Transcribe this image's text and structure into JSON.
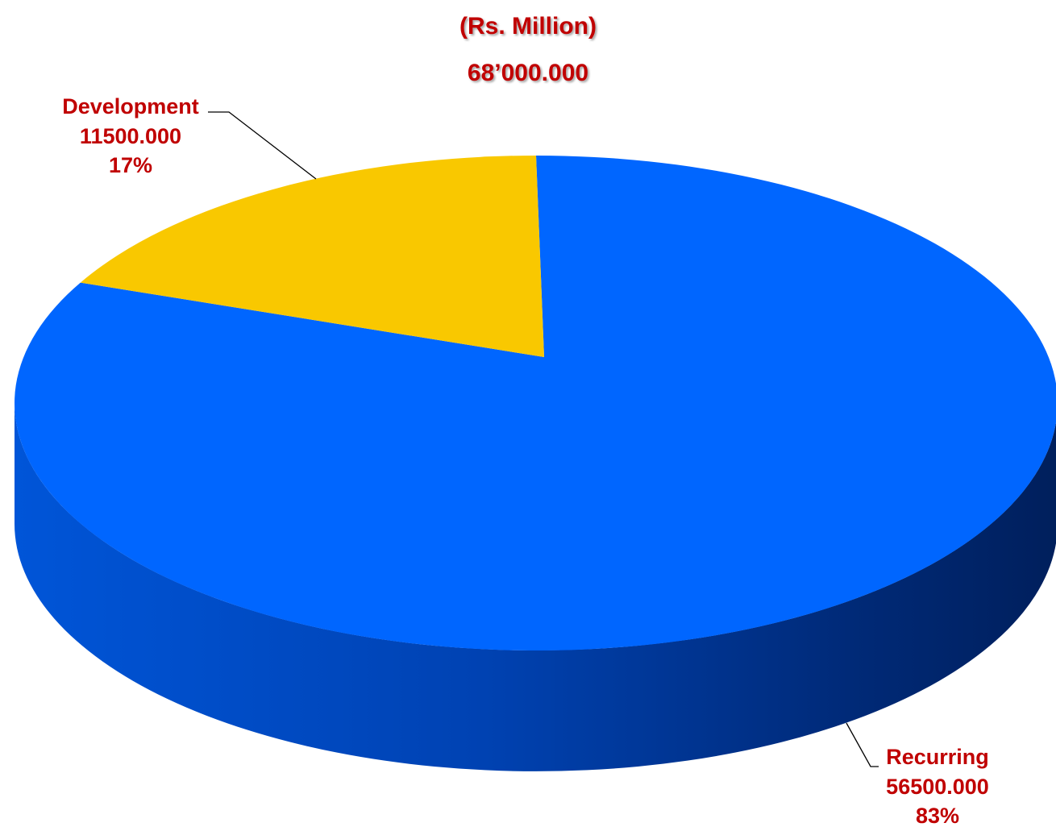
{
  "chart_data": {
    "type": "pie",
    "title": "(Rs. Million)",
    "subtitle": "68’000.000",
    "slices": [
      {
        "name": "Recurring",
        "value_label": "56500.000",
        "value": 56500,
        "percent_label": "83%",
        "color": "#0066ff"
      },
      {
        "name": "Development",
        "value_label": "11500.000",
        "value": 11500,
        "percent_label": "17%",
        "color": "#f9c800"
      }
    ],
    "label_color": "#c00000",
    "style": "3d"
  }
}
